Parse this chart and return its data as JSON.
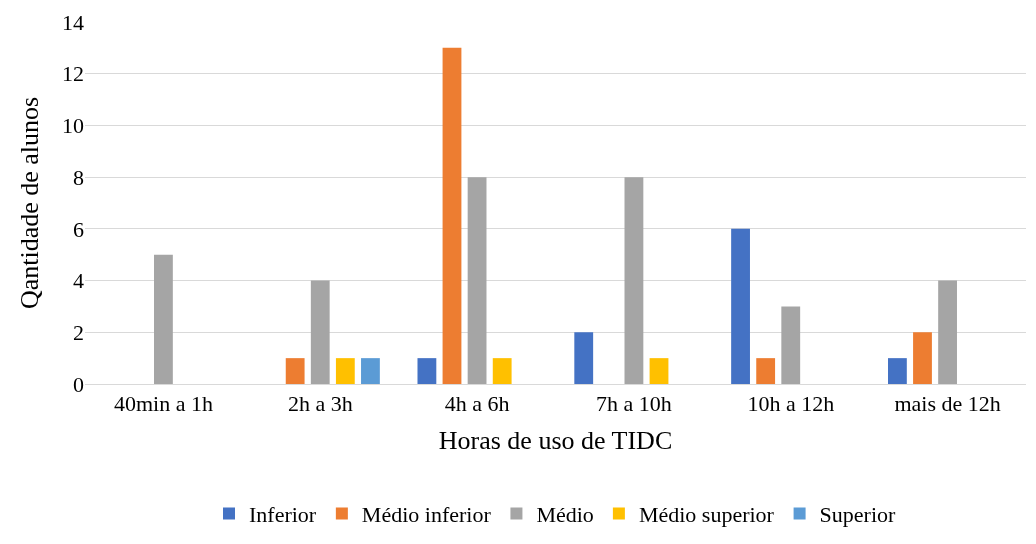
{
  "chart_data": {
    "type": "bar",
    "xlabel": "Horas de uso de TIDC",
    "ylabel": "Qantidade de alunos",
    "categories": [
      "40min a 1h",
      "2h a 3h",
      "4h a 6h",
      "7h a 10h",
      "10h a 12h",
      "mais de 12h"
    ],
    "series": [
      {
        "name": "Inferior",
        "color": "#4472c4",
        "values": [
          0,
          0,
          1,
          2,
          6,
          1
        ]
      },
      {
        "name": "Médio inferior",
        "color": "#ed7d31",
        "values": [
          0,
          1,
          13,
          0,
          1,
          2
        ]
      },
      {
        "name": "Médio",
        "color": "#a5a5a5",
        "values": [
          5,
          4,
          8,
          8,
          3,
          4
        ]
      },
      {
        "name": "Médio superior",
        "color": "#ffc000",
        "values": [
          0,
          1,
          1,
          1,
          0,
          0
        ]
      },
      {
        "name": "Superior",
        "color": "#5b9bd5",
        "values": [
          0,
          1,
          0,
          0,
          0,
          0
        ]
      }
    ],
    "ylim": [
      0,
      14
    ],
    "yticks": [
      0,
      2,
      4,
      6,
      8,
      10,
      12,
      14
    ],
    "grid": "y",
    "legend": "bottom"
  }
}
